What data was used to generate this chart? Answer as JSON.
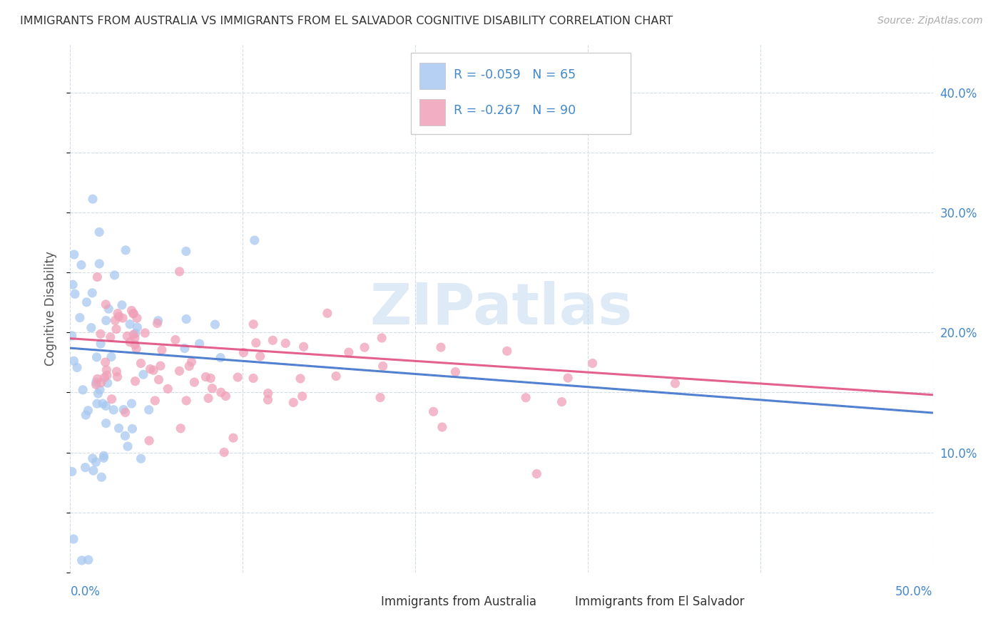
{
  "title": "IMMIGRANTS FROM AUSTRALIA VS IMMIGRANTS FROM EL SALVADOR COGNITIVE DISABILITY CORRELATION CHART",
  "source": "Source: ZipAtlas.com",
  "ylabel": "Cognitive Disability",
  "ylabel_right_ticks": [
    "10.0%",
    "20.0%",
    "30.0%",
    "40.0%"
  ],
  "ylabel_right_vals": [
    0.1,
    0.2,
    0.3,
    0.4
  ],
  "xlim": [
    0.0,
    0.5
  ],
  "ylim": [
    0.0,
    0.44
  ],
  "australia_color": "#a8c8f0",
  "el_salvador_color": "#f0a0b8",
  "australia_line_color": "#4477cc",
  "el_salvador_line_color": "#e05080",
  "axis_color": "#4488cc",
  "legend_text_color": "#4488cc",
  "watermark_color": "#c8ddf0",
  "grid_color": "#d0dde8",
  "australia_N": 65,
  "el_salvador_N": 90,
  "australia_R": -0.059,
  "el_salvador_R": -0.267
}
